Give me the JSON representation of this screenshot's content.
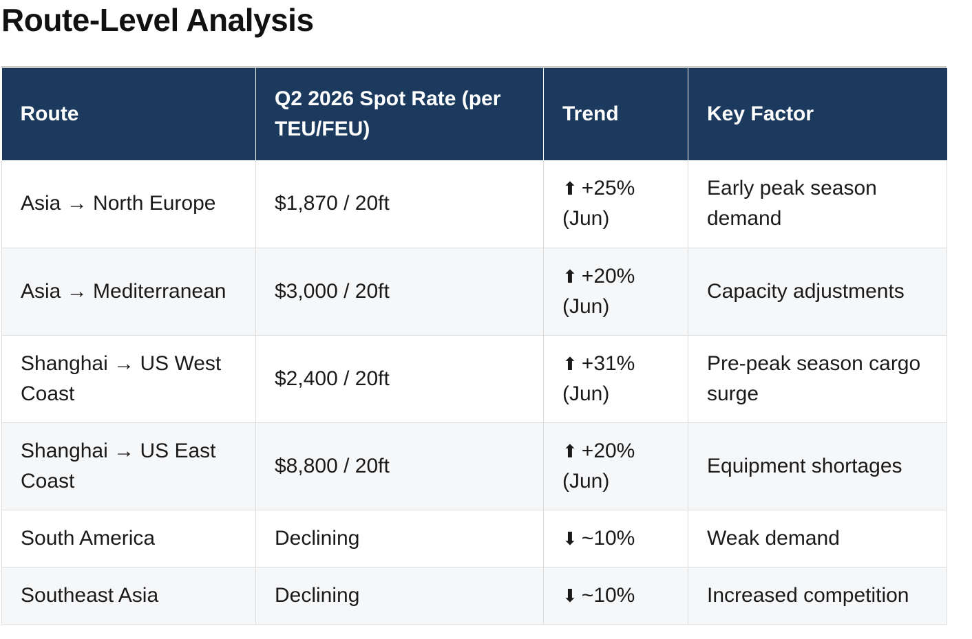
{
  "title": "Route-Level Analysis",
  "table": {
    "headers": [
      "Route",
      "Q2 2026 Spot Rate (per TEU/FEU)",
      "Trend",
      "Key Factor"
    ],
    "rows": [
      {
        "route": "Asia → North Europe",
        "rate": "$1,870 / 20ft",
        "trend_icon": "up-arrow-icon",
        "trend_arrow": "⬆",
        "trend_value": "+25%",
        "trend_period": "(Jun)",
        "factor": "Early peak season demand"
      },
      {
        "route": "Asia → Mediterranean",
        "rate": "$3,000 / 20ft",
        "trend_icon": "up-arrow-icon",
        "trend_arrow": "⬆",
        "trend_value": "+20%",
        "trend_period": "(Jun)",
        "factor": "Capacity adjustments"
      },
      {
        "route": "Shanghai → US West Coast",
        "rate": "$2,400 / 20ft",
        "trend_icon": "up-arrow-icon",
        "trend_arrow": "⬆",
        "trend_value": "+31%",
        "trend_period": "(Jun)",
        "factor": "Pre-peak season cargo surge"
      },
      {
        "route": "Shanghai → US East Coast",
        "rate": "$8,800 / 20ft",
        "trend_icon": "up-arrow-icon",
        "trend_arrow": "⬆",
        "trend_value": "+20%",
        "trend_period": "(Jun)",
        "factor": "Equipment shortages"
      },
      {
        "route": "South America",
        "rate": "Declining",
        "trend_icon": "down-arrow-icon",
        "trend_arrow": "⬇",
        "trend_value": "~10%",
        "trend_period": "",
        "factor": "Weak demand"
      },
      {
        "route": "Southeast Asia",
        "rate": "Declining",
        "trend_icon": "down-arrow-icon",
        "trend_arrow": "⬇",
        "trend_value": "~10%",
        "trend_period": "",
        "factor": "Increased competition"
      }
    ]
  },
  "colors": {
    "header_bg": "#1c3a5e",
    "header_text": "#ffffff",
    "row_alt_bg": "#f6f7f9",
    "border": "#dcdcdc"
  }
}
